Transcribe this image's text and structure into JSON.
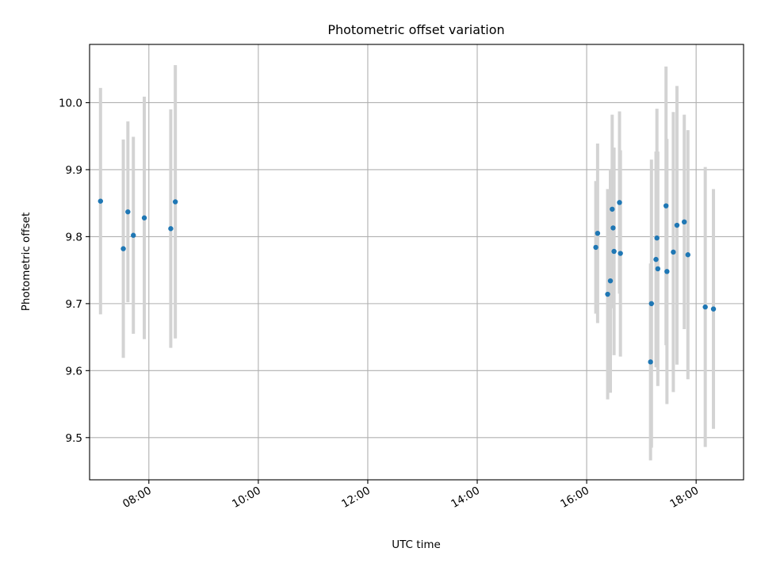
{
  "chart_data": {
    "type": "scatter",
    "title": "Photometric offset variation",
    "xlabel": "UTC time",
    "ylabel": "Photometric offset",
    "x_type": "time",
    "xlim": [
      "06:55",
      "18:52"
    ],
    "ylim": [
      9.437,
      10.087
    ],
    "x_ticks": [
      "08:00",
      "10:00",
      "12:00",
      "14:00",
      "16:00",
      "18:00"
    ],
    "y_ticks": [
      9.5,
      9.6,
      9.7,
      9.8,
      9.9,
      10.0
    ],
    "y_tick_labels": [
      "9.5",
      "9.6",
      "9.7",
      "9.8",
      "9.9",
      "10.0"
    ],
    "grid": true,
    "legend": false,
    "colors": {
      "marker": "#1f77b4",
      "errorbar": "#d3d3d3"
    },
    "points": [
      {
        "x": "07:07",
        "y": 9.853,
        "err": 0.169
      },
      {
        "x": "07:32",
        "y": 9.782,
        "err": 0.163
      },
      {
        "x": "07:37",
        "y": 9.837,
        "err": 0.135
      },
      {
        "x": "07:43",
        "y": 9.802,
        "err": 0.147
      },
      {
        "x": "07:55",
        "y": 9.828,
        "err": 0.181
      },
      {
        "x": "08:24",
        "y": 9.812,
        "err": 0.178
      },
      {
        "x": "08:29",
        "y": 9.852,
        "err": 0.204
      },
      {
        "x": "16:10",
        "y": 9.784,
        "err": 0.099
      },
      {
        "x": "16:12",
        "y": 9.805,
        "err": 0.134
      },
      {
        "x": "16:23",
        "y": 9.714,
        "err": 0.157
      },
      {
        "x": "16:26",
        "y": 9.734,
        "err": 0.167
      },
      {
        "x": "16:28",
        "y": 9.841,
        "err": 0.141
      },
      {
        "x": "16:29",
        "y": 9.813,
        "err": 0.12
      },
      {
        "x": "16:30",
        "y": 9.778,
        "err": 0.155
      },
      {
        "x": "16:36",
        "y": 9.851,
        "err": 0.136
      },
      {
        "x": "16:37",
        "y": 9.775,
        "err": 0.154
      },
      {
        "x": "17:10",
        "y": 9.613,
        "err": 0.147
      },
      {
        "x": "17:11",
        "y": 9.7,
        "err": 0.215
      },
      {
        "x": "17:16",
        "y": 9.766,
        "err": 0.161
      },
      {
        "x": "17:17",
        "y": 9.798,
        "err": 0.193
      },
      {
        "x": "17:18",
        "y": 9.752,
        "err": 0.175
      },
      {
        "x": "17:27",
        "y": 9.846,
        "err": 0.208
      },
      {
        "x": "17:28",
        "y": 9.748,
        "err": 0.198
      },
      {
        "x": "17:35",
        "y": 9.777,
        "err": 0.209
      },
      {
        "x": "17:39",
        "y": 9.817,
        "err": 0.208
      },
      {
        "x": "17:47",
        "y": 9.822,
        "err": 0.16
      },
      {
        "x": "17:51",
        "y": 9.773,
        "err": 0.186
      },
      {
        "x": "18:10",
        "y": 9.695,
        "err": 0.209
      },
      {
        "x": "18:19",
        "y": 9.692,
        "err": 0.179
      }
    ]
  }
}
